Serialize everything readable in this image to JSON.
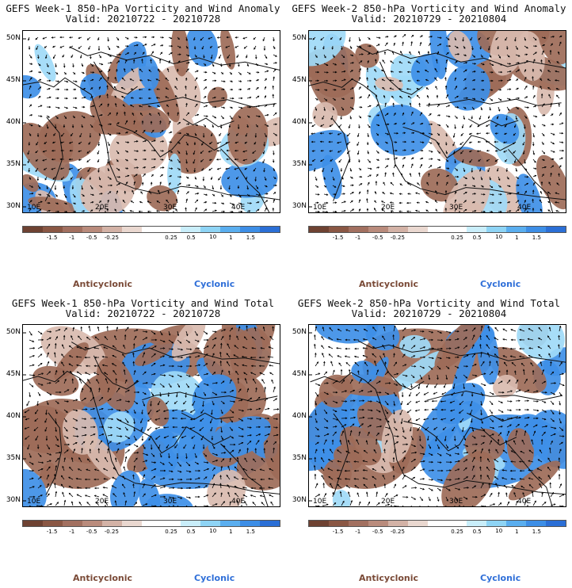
{
  "panels": [
    {
      "title_line1": "GEFS Week-1 850-hPa Vorticity and Wind Anomaly",
      "title_line2": "Valid: 20210722 - 20210728"
    },
    {
      "title_line1": "GEFS Week-2 850-hPa Vorticity and Wind Anomaly",
      "title_line2": "Valid: 20210729 - 20210804"
    },
    {
      "title_line1": "GEFS Week-1 850-hPa Vorticity and Wind Total",
      "title_line2": "Valid: 20210722 - 20210728"
    },
    {
      "title_line1": "GEFS Week-2 850-hPa Vorticity and Wind Total",
      "title_line2": "Valid: 20210729 - 20210804"
    }
  ],
  "lat_labels": [
    "50N",
    "45N",
    "40N",
    "35N",
    "30N"
  ],
  "lon_labels": [
    "10E",
    "20E",
    "30E",
    "40E"
  ],
  "colorbar": {
    "labels": [
      "-1.5",
      "-1",
      "-0.5",
      "-0.25",
      "0.25",
      "0.5",
      "1",
      "1.5"
    ],
    "scale_marker": "10",
    "colors": [
      "#6e4232",
      "#8a5744",
      "#a27060",
      "#b98b7c",
      "#d3b2a6",
      "#ead8d0",
      "#ffffff",
      "#ffffff",
      "#c9eefa",
      "#8ed4f5",
      "#5aaeef",
      "#3d8ee6",
      "#2b6fd6"
    ]
  },
  "legend": {
    "anticyclonic": "Anticyclonic",
    "cyclonic": "Cyclonic"
  },
  "map_colors": {
    "anticyclonic": "#9d6b58",
    "cyclonic": "#3e8fe7",
    "light_cyclonic": "#9fdaf7",
    "light_anticyclonic": "#d9bbaf",
    "background": "#ffffff"
  }
}
